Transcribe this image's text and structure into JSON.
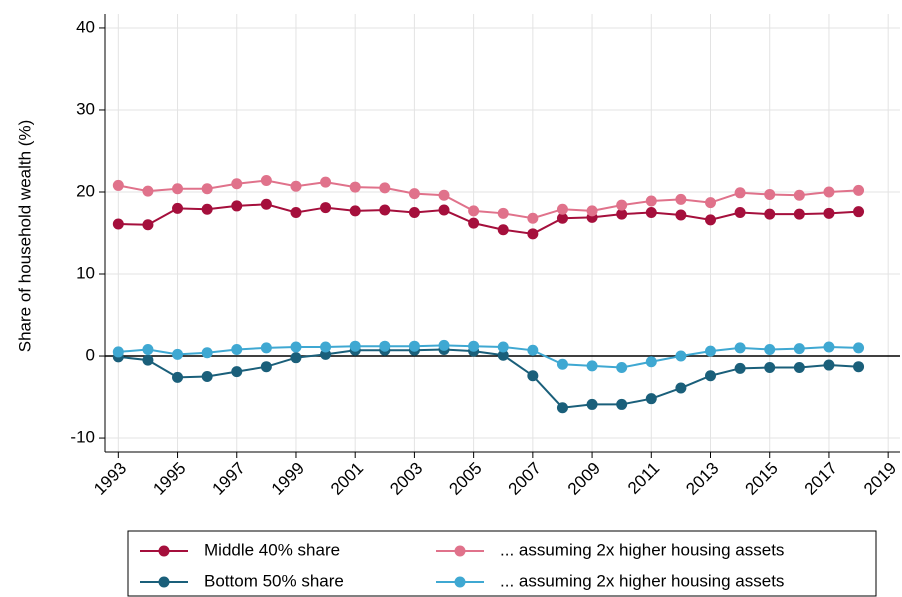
{
  "chart_data": {
    "type": "line",
    "y_label": "Share of household wealth (%)",
    "x": [
      1993,
      1994,
      1995,
      1996,
      1997,
      1998,
      1999,
      2000,
      2001,
      2002,
      2003,
      2004,
      2005,
      2006,
      2007,
      2008,
      2009,
      2010,
      2011,
      2012,
      2013,
      2014,
      2015,
      2016,
      2017,
      2018
    ],
    "series": [
      {
        "name": "Middle 40% share",
        "color": "#a50f3c",
        "values": [
          16.1,
          16.0,
          18.0,
          17.9,
          18.3,
          18.5,
          17.5,
          18.1,
          17.7,
          17.8,
          17.5,
          17.8,
          16.2,
          15.4,
          14.9,
          16.8,
          16.9,
          17.3,
          17.5,
          17.2,
          16.6,
          17.5,
          17.3,
          17.3,
          17.4,
          17.6
        ]
      },
      {
        "name": "... assuming 2x higher housing assets",
        "color": "#e0728b",
        "values": [
          20.8,
          20.1,
          20.4,
          20.4,
          21.0,
          21.4,
          20.7,
          21.2,
          20.6,
          20.5,
          19.8,
          19.6,
          17.7,
          17.4,
          16.8,
          17.9,
          17.7,
          18.4,
          18.9,
          19.1,
          18.7,
          19.9,
          19.7,
          19.6,
          20.0,
          20.2
        ]
      },
      {
        "name": "Bottom 50% share",
        "color": "#1a5f7a",
        "values": [
          -0.1,
          -0.5,
          -2.6,
          -2.5,
          -1.9,
          -1.3,
          -0.2,
          0.2,
          0.7,
          0.7,
          0.7,
          0.8,
          0.6,
          0.1,
          -2.4,
          -6.3,
          -5.9,
          -5.9,
          -5.2,
          -3.9,
          -2.4,
          -1.5,
          -1.4,
          -1.4,
          -1.1,
          -1.3
        ]
      },
      {
        "name": "... assuming 2x higher housing assets",
        "color": "#3fa8d2",
        "values": [
          0.5,
          0.8,
          0.2,
          0.4,
          0.8,
          1.0,
          1.1,
          1.1,
          1.2,
          1.2,
          1.2,
          1.3,
          1.2,
          1.1,
          0.7,
          -1.0,
          -1.2,
          -1.4,
          -0.7,
          0.0,
          0.6,
          1.0,
          0.8,
          0.9,
          1.1,
          1.0
        ]
      }
    ],
    "xlim": [
      1992.55,
      2019.4
    ],
    "xticks": [
      1993,
      1995,
      1997,
      1999,
      2001,
      2003,
      2005,
      2007,
      2009,
      2011,
      2013,
      2015,
      2017,
      2019
    ],
    "ylim": [
      -11.7,
      41.7
    ],
    "yticks": [
      -10,
      0,
      10,
      20,
      30,
      40
    ],
    "reference_line": 0,
    "grid": true,
    "legend": "bottom"
  }
}
